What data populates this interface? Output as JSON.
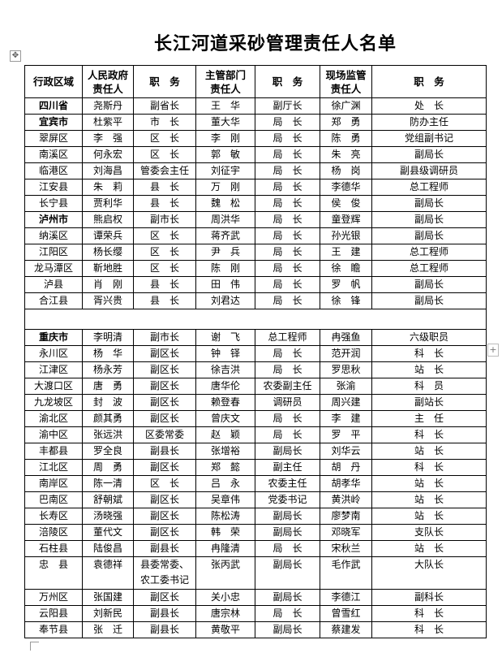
{
  "document": {
    "title": "长江河道采砂管理责任人名单",
    "headers": [
      "行政区域",
      "人民政府责任人",
      "职　务",
      "主管部门责任人",
      "职　务",
      "现场监管责任人",
      "职　务"
    ],
    "header_lines": [
      [
        "行政区域"
      ],
      [
        "人民政府",
        "责任人"
      ],
      [
        "职　务"
      ],
      [
        "主管部门",
        "责任人"
      ],
      [
        "职　务"
      ],
      [
        "现场监管",
        "责任人"
      ],
      [
        "职　务"
      ]
    ],
    "rows": [
      {
        "bold": true,
        "cells": [
          "四川省",
          "尧斯丹",
          "副省长",
          "王　华",
          "副厅长",
          "徐广渊",
          "处　长"
        ]
      },
      {
        "bold": true,
        "cells": [
          "宜宾市",
          "杜紫平",
          "市　长",
          "董大华",
          "局　长",
          "郑　勇",
          "防办主任"
        ]
      },
      {
        "cells": [
          "翠屏区",
          "李　强",
          "区　长",
          "李　刚",
          "局　长",
          "陈　勇",
          "党组副书记"
        ]
      },
      {
        "cells": [
          "南溪区",
          "何永宏",
          "区　长",
          "郭　敏",
          "局　长",
          "朱　亮",
          "副局长"
        ]
      },
      {
        "cells": [
          "临港区",
          "刘海昌",
          "管委会主任",
          "刘征宇",
          "局　长",
          "杨　岗",
          "副县级调研员"
        ]
      },
      {
        "cells": [
          "江安县",
          "朱　莉",
          "县　长",
          "万　刚",
          "局　长",
          "李德华",
          "总工程师"
        ]
      },
      {
        "cells": [
          "长宁县",
          "贾利华",
          "县　长",
          "魏　松",
          "局　长",
          "侯　俊",
          "副局长"
        ]
      },
      {
        "bold": true,
        "cells": [
          "泸州市",
          "熊启权",
          "副市长",
          "周洪华",
          "局　长",
          "童登辉",
          "副局长"
        ]
      },
      {
        "cells": [
          "纳溪区",
          "谭荣兵",
          "区　长",
          "蒋齐武",
          "局　长",
          "孙光银",
          "副局长"
        ]
      },
      {
        "cells": [
          "江阳区",
          "杨长缨",
          "区　长",
          "尹　兵",
          "局　长",
          "王　建",
          "总工程师"
        ]
      },
      {
        "cells": [
          "龙马潭区",
          "靳地胜",
          "区　长",
          "陈　刚",
          "局　长",
          "徐　瞻",
          "总工程师"
        ]
      },
      {
        "cells": [
          "泸县",
          "肖　刚",
          "县　长",
          "田　伟",
          "局　长",
          "罗　帆",
          "副局长"
        ]
      },
      {
        "cells": [
          "合江县",
          "胥兴贵",
          "县　长",
          "刘君达",
          "局　长",
          "徐　锋",
          "副局长"
        ]
      },
      {
        "blank": true,
        "cells": []
      },
      {
        "bold": true,
        "cells": [
          "重庆市",
          "李明清",
          "副市长",
          "谢　飞",
          "总工程师",
          "冉强鱼",
          "六级职员"
        ]
      },
      {
        "cells": [
          "永川区",
          "杨　华",
          "副区长",
          "钟　铎",
          "局　长",
          "范开润",
          "科　长"
        ]
      },
      {
        "cells": [
          "江津区",
          "杨永芳",
          "副区长",
          "徐吉洪",
          "局　长",
          "罗思秋",
          "站　长"
        ]
      },
      {
        "cells": [
          "大渡口区",
          "唐　勇",
          "副区长",
          "唐华伦",
          "农委副主任",
          "张渝",
          "科　员"
        ]
      },
      {
        "cells": [
          "九龙坡区",
          "封　波",
          "副区长",
          "赖登春",
          "调研员",
          "周兴建",
          "副站长"
        ]
      },
      {
        "cells": [
          "渝北区",
          "颜其勇",
          "副区长",
          "曾庆文",
          "局　长",
          "李　建",
          "主　任"
        ]
      },
      {
        "cells": [
          "渝中区",
          "张远洪",
          "区委常委",
          "赵　颖",
          "局　长",
          "罗　平",
          "科　长"
        ]
      },
      {
        "cells": [
          "丰都县",
          "罗全良",
          "副县长",
          "张增裕",
          "副局长",
          "刘华云",
          "站　长"
        ]
      },
      {
        "cells": [
          "江北区",
          "周　勇",
          "副区长",
          "郑　懿",
          "副主任",
          "胡　丹",
          "科　长"
        ]
      },
      {
        "cells": [
          "南岸区",
          "陈一清",
          "区　长",
          "吕　永",
          "农委主任",
          "胡孝华",
          "站　长"
        ]
      },
      {
        "cells": [
          "巴南区",
          "舒朝斌",
          "副区长",
          "吴章伟",
          "党委书记",
          "黄洪岭",
          "站　长"
        ]
      },
      {
        "cells": [
          "长寿区",
          "汤晓强",
          "副区长",
          "陈松涛",
          "副局长",
          "廖梦南",
          "站　长"
        ]
      },
      {
        "cells": [
          "涪陵区",
          "董代文",
          "副区长",
          "韩　荣",
          "副局长",
          "邓晓军",
          "支队长"
        ]
      },
      {
        "cells": [
          "石柱县",
          "陆俊昌",
          "副县长",
          "冉隆清",
          "局　长",
          "宋秋兰",
          "站　长"
        ]
      },
      {
        "tall": true,
        "cells": [
          "忠　县",
          "袁德祥",
          "县委常委、农工委书记",
          "张丙武",
          "副局长",
          "毛作武",
          "大队长"
        ]
      },
      {
        "cells": [
          "万州区",
          "张国建",
          "副区长",
          "关小忠",
          "副局长",
          "李德江",
          "副科长"
        ]
      },
      {
        "cells": [
          "云阳县",
          "刘新民",
          "副县长",
          "唐宗林",
          "局　长",
          "曾雪红",
          "科　长"
        ]
      },
      {
        "cells": [
          "奉节县",
          "张　迁",
          "副县长",
          "黄敬平",
          "副局长",
          "蔡建发",
          "科　长"
        ]
      }
    ]
  },
  "handles": {
    "move_icon": "✥",
    "add_icon": "+"
  }
}
